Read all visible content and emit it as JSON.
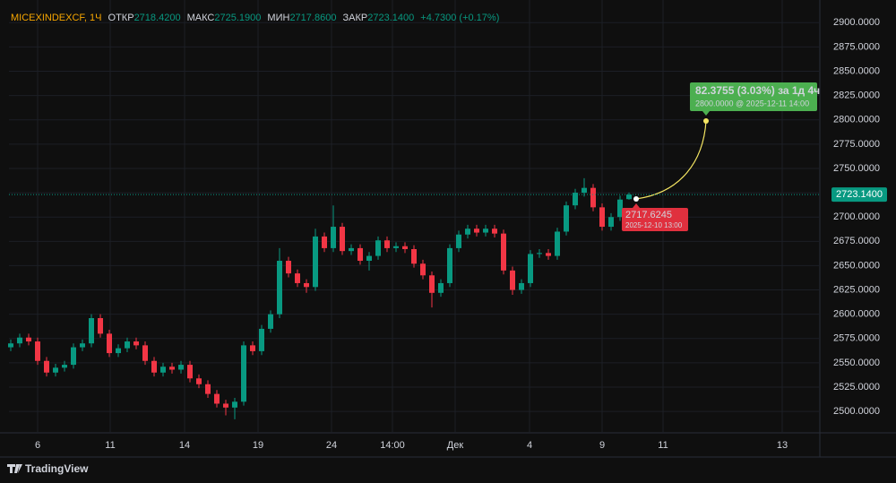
{
  "chart_data": {
    "type": "candlestick",
    "header": {
      "symbol": "MICEXINDEXCF, 1Ч",
      "open_label": "ОТКР",
      "open": "2718.4200",
      "high_label": "МАКС",
      "high": "2725.1900",
      "low_label": "МИН",
      "low": "2717.8600",
      "close_label": "ЗАКР",
      "close": "2723.1400",
      "change": "+4.7300 (+0.17%)"
    },
    "open": [
      2566,
      2570,
      2576,
      2572,
      2552,
      2540,
      2545,
      2548,
      2566,
      2570,
      2596,
      2580,
      2560,
      2565,
      2572,
      2568,
      2552,
      2540,
      2546,
      2543,
      2548,
      2534,
      2528,
      2518,
      2508,
      2504,
      2510,
      2568,
      2562,
      2585,
      2600,
      2655,
      2642,
      2632,
      2628,
      2680,
      2668,
      2690,
      2665,
      2668,
      2655,
      2660,
      2676,
      2668,
      2670,
      2667,
      2652,
      2640,
      2622,
      2632,
      2668,
      2682,
      2688,
      2684,
      2688,
      2683,
      2645,
      2625,
      2632,
      2662,
      2663,
      2660,
      2685,
      2712,
      2725,
      2730,
      2710,
      2690,
      2700,
      2718.42
    ],
    "high": [
      2574,
      2580,
      2580,
      2576,
      2556,
      2549,
      2552,
      2570,
      2574,
      2600,
      2600,
      2584,
      2569,
      2576,
      2576,
      2572,
      2556,
      2550,
      2550,
      2552,
      2552,
      2538,
      2532,
      2522,
      2512,
      2514,
      2572,
      2572,
      2589,
      2604,
      2668,
      2659,
      2646,
      2636,
      2688,
      2684,
      2712,
      2694,
      2672,
      2672,
      2664,
      2680,
      2680,
      2674,
      2674,
      2671,
      2656,
      2644,
      2636,
      2672,
      2686,
      2692,
      2692,
      2692,
      2692,
      2687,
      2649,
      2636,
      2666,
      2667,
      2667,
      2689,
      2716,
      2729,
      2740,
      2734,
      2714,
      2704,
      2722,
      2725.19
    ],
    "low": [
      2562,
      2566,
      2568,
      2548,
      2536,
      2536,
      2541,
      2544,
      2562,
      2566,
      2576,
      2556,
      2556,
      2561,
      2564,
      2548,
      2536,
      2536,
      2539,
      2539,
      2530,
      2524,
      2514,
      2504,
      2496,
      2492,
      2506,
      2558,
      2558,
      2581,
      2596,
      2638,
      2628,
      2622,
      2624,
      2664,
      2664,
      2661,
      2661,
      2651,
      2645,
      2656,
      2664,
      2664,
      2663,
      2648,
      2636,
      2607,
      2618,
      2628,
      2664,
      2678,
      2680,
      2680,
      2679,
      2641,
      2620,
      2621,
      2628,
      2658,
      2656,
      2656,
      2681,
      2708,
      2721,
      2706,
      2686,
      2686,
      2696,
      2717.86
    ],
    "close": [
      2570,
      2576,
      2572,
      2552,
      2540,
      2545,
      2548,
      2566,
      2570,
      2596,
      2580,
      2560,
      2565,
      2572,
      2568,
      2552,
      2540,
      2546,
      2543,
      2548,
      2534,
      2528,
      2518,
      2508,
      2504,
      2510,
      2568,
      2562,
      2585,
      2600,
      2655,
      2642,
      2632,
      2628,
      2680,
      2668,
      2690,
      2665,
      2668,
      2655,
      2660,
      2676,
      2668,
      2670,
      2667,
      2652,
      2640,
      2622,
      2632,
      2668,
      2682,
      2688,
      2684,
      2688,
      2683,
      2645,
      2625,
      2632,
      2662,
      2663,
      2660,
      2685,
      2712,
      2725,
      2730,
      2710,
      2690,
      2700,
      2718,
      2723.14
    ],
    "up_color": "#089981",
    "down_color": "#f23645",
    "xlim": [
      -0.2,
      90.3
    ],
    "xticks": [
      {
        "value": 3,
        "label": "6"
      },
      {
        "value": 11.1,
        "label": "11"
      },
      {
        "value": 19.4,
        "label": "14"
      },
      {
        "value": 27.6,
        "label": "19"
      },
      {
        "value": 35.8,
        "label": "24"
      },
      {
        "value": 42.6,
        "label": "14:00"
      },
      {
        "value": 49.6,
        "label": "Дек"
      },
      {
        "value": 57.9,
        "label": "4"
      },
      {
        "value": 66,
        "label": "9"
      },
      {
        "value": 72.8,
        "label": "11"
      },
      {
        "value": 86.1,
        "label": "13"
      }
    ],
    "ylim": [
      2478,
      2915
    ],
    "yticks": [
      {
        "value": 2500,
        "label": "2500.0000"
      },
      {
        "value": 2525,
        "label": "2525.0000"
      },
      {
        "value": 2550,
        "label": "2550.0000"
      },
      {
        "value": 2575,
        "label": "2575.0000"
      },
      {
        "value": 2600,
        "label": "2600.0000"
      },
      {
        "value": 2625,
        "label": "2625.0000"
      },
      {
        "value": 2650,
        "label": "2650.0000"
      },
      {
        "value": 2675,
        "label": "2675.0000"
      },
      {
        "value": 2700,
        "label": "2700.0000"
      },
      {
        "value": 2725,
        "label": "2725.0000"
      },
      {
        "value": 2750,
        "label": "2750.0000"
      },
      {
        "value": 2775,
        "label": "2775.0000"
      },
      {
        "value": 2800,
        "label": "2800.0000"
      },
      {
        "value": 2825,
        "label": "2825.0000"
      },
      {
        "value": 2850,
        "label": "2850.0000"
      },
      {
        "value": 2875,
        "label": "2875.0000"
      },
      {
        "value": 2900,
        "label": "2900.0000"
      }
    ],
    "grid": true,
    "last_price": {
      "value": 2723.14,
      "label": "2723.1400"
    },
    "annotations": {
      "projection": "82.3755 (3.03%) за 1д 4ч",
      "target": "2800.0000 @ 2025-12-11  14:00",
      "start_price": "2717.6245",
      "start_time": "2025-12-10 13:00"
    },
    "brand": "TradingView"
  }
}
